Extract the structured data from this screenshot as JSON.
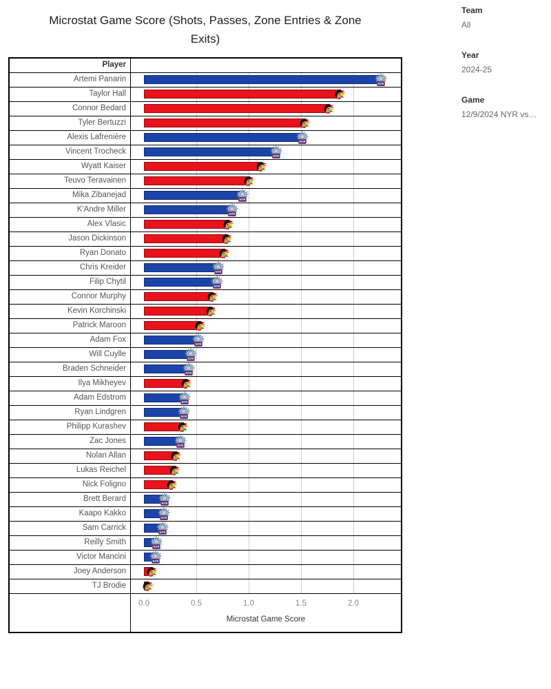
{
  "title": "Microstat Game Score (Shots, Passes, Zone Entries & Zone Exits)",
  "filters": [
    {
      "label": "Team",
      "value": "All"
    },
    {
      "label": "Year",
      "value": "2024-25"
    },
    {
      "label": "Game",
      "value": "12/9/2024 NYR vs…"
    }
  ],
  "table": {
    "player_header": "Player"
  },
  "axis": {
    "label": "Microstat Game Score",
    "ticks": [
      "0.0",
      "0.5",
      "1.0",
      "1.5",
      "2.0"
    ]
  },
  "colors": {
    "nyr_fill": "#1C44A8",
    "nyr_border": "#0D2B7A",
    "chi_fill": "#E8131B",
    "chi_border": "#96090F",
    "gridline": "#cfcfcf",
    "row_border": "#000000"
  },
  "icons": {
    "nyr": "nyr-liberty-logo-icon",
    "chi": "blackhawks-logo-icon"
  },
  "chart_data": {
    "type": "bar",
    "orientation": "horizontal",
    "title": "Microstat Game Score (Shots, Passes, Zone Entries & Zone Exits)",
    "xlabel": "Microstat Game Score",
    "xlim": [
      0,
      2.45
    ],
    "x_ticks": [
      0.0,
      0.5,
      1.0,
      1.5,
      2.0
    ],
    "grid": "vertical gridlines every 0.5",
    "legend": "none; team logo marker drawn at end of each bar",
    "categories": [
      "Artemi Panarin",
      "Taylor Hall",
      "Connor Bedard",
      "Tyler Bertuzzi",
      "Alexis Lafrenière",
      "Vincent Trocheck",
      "Wyatt Kaiser",
      "Teuvo Teravainen",
      "Mika Zibanejad",
      "K'Andre Miller",
      "Alex Vlasic",
      "Jason Dickinson",
      "Ryan Donato",
      "Chris Kreider",
      "Filip Chytil",
      "Connor Murphy",
      "Kevin Korchinski",
      "Patrick Maroon",
      "Adam Fox",
      "Will Cuylle",
      "Braden Schneider",
      "Ilya Mikheyev",
      "Adam Edstrom",
      "Ryan Lindgren",
      "Philipp Kurashev",
      "Zac Jones",
      "Nolan Allan",
      "Lukas Reichel",
      "Nick Foligno",
      "Brett Berard",
      "Kaapo Kakko",
      "Sam Carrick",
      "Reilly Smith",
      "Victor Mancini",
      "Joey Anderson",
      "TJ Brodie"
    ],
    "teams": [
      "NYR",
      "CHI",
      "CHI",
      "CHI",
      "NYR",
      "NYR",
      "CHI",
      "CHI",
      "NYR",
      "NYR",
      "CHI",
      "CHI",
      "CHI",
      "NYR",
      "NYR",
      "CHI",
      "CHI",
      "CHI",
      "NYR",
      "NYR",
      "NYR",
      "CHI",
      "NYR",
      "NYR",
      "CHI",
      "NYR",
      "CHI",
      "CHI",
      "CHI",
      "NYR",
      "NYR",
      "NYR",
      "NYR",
      "NYR",
      "CHI",
      "CHI"
    ],
    "series": [
      {
        "name": "Microstat Game Score",
        "values": [
          2.26,
          1.87,
          1.76,
          1.53,
          1.51,
          1.26,
          1.12,
          1.0,
          0.94,
          0.84,
          0.8,
          0.79,
          0.76,
          0.71,
          0.7,
          0.65,
          0.64,
          0.53,
          0.52,
          0.45,
          0.43,
          0.4,
          0.39,
          0.38,
          0.37,
          0.35,
          0.3,
          0.29,
          0.26,
          0.2,
          0.19,
          0.18,
          0.12,
          0.11,
          0.07,
          0.03
        ]
      }
    ],
    "bar_colors": {
      "NYR": "#1C44A8",
      "CHI": "#E8131B"
    }
  }
}
